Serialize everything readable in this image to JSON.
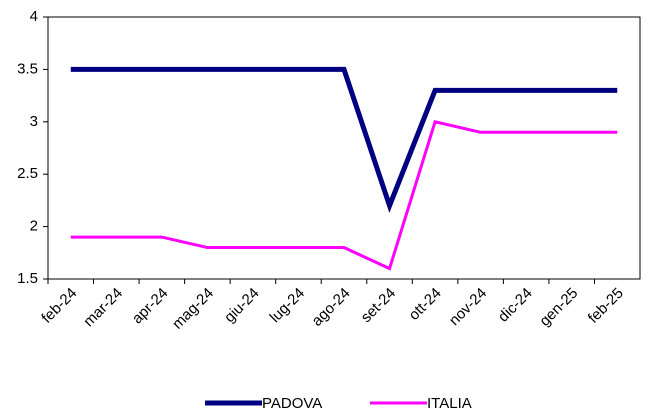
{
  "chart_data": {
    "type": "line",
    "categories": [
      "feb-24",
      "mar-24",
      "apr-24",
      "mag-24",
      "giu-24",
      "lug-24",
      "ago-24",
      "set-24",
      "ott-24",
      "nov-24",
      "dic-24",
      "gen-25",
      "feb-25"
    ],
    "series": [
      {
        "name": "PADOVA",
        "color": "#000080",
        "values": [
          3.5,
          3.5,
          3.5,
          3.5,
          3.5,
          3.5,
          3.5,
          2.2,
          3.3,
          3.3,
          3.3,
          3.3,
          3.3
        ]
      },
      {
        "name": "ITALIA",
        "color": "#ff00ff",
        "values": [
          1.9,
          1.9,
          1.9,
          1.8,
          1.8,
          1.8,
          1.8,
          1.6,
          3.0,
          2.9,
          2.9,
          2.9,
          2.9
        ]
      }
    ],
    "ylim": [
      1.5,
      4
    ],
    "yticks": [
      1.5,
      2,
      2.5,
      3,
      3.5,
      4
    ],
    "grid": false,
    "legend": "bottom"
  }
}
